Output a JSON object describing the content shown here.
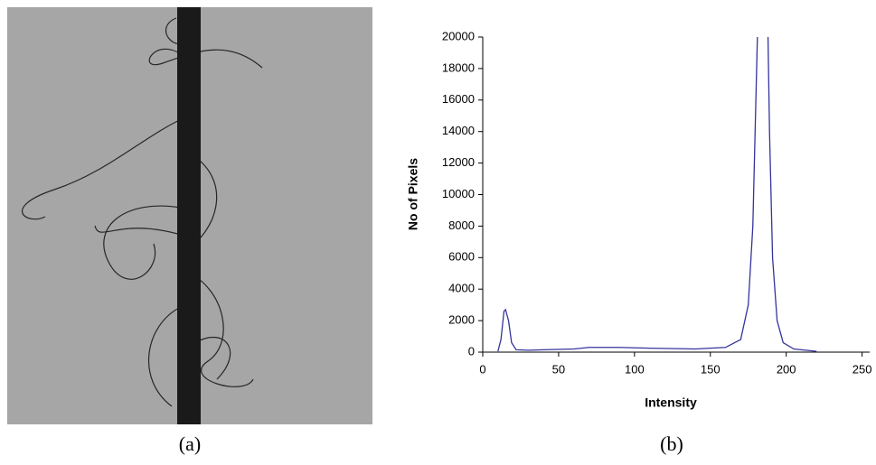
{
  "panel_labels": [
    "(a)",
    "(b)"
  ],
  "chart_data": {
    "type": "line",
    "xlabel": "Intensity",
    "ylabel": "No of Pixels",
    "x": [
      10,
      12,
      14,
      15,
      17,
      19,
      22,
      30,
      40,
      60,
      70,
      90,
      110,
      140,
      160,
      170,
      175,
      178,
      180,
      181,
      184,
      188,
      189,
      191,
      194,
      198,
      205,
      220
    ],
    "values": [
      50,
      800,
      2600,
      2700,
      2000,
      600,
      150,
      120,
      150,
      200,
      300,
      300,
      250,
      200,
      300,
      800,
      3000,
      8000,
      16000,
      20000,
      null,
      20000,
      14000,
      6000,
      2000,
      600,
      200,
      50
    ],
    "color": "#34349c",
    "xlim": [
      0,
      255
    ],
    "ylim": [
      0,
      20000
    ],
    "xticks": [
      0,
      50,
      100,
      150,
      200,
      250
    ],
    "yticks": [
      0,
      2000,
      4000,
      6000,
      8000,
      10000,
      12000,
      14000,
      16000,
      18000,
      20000
    ]
  }
}
